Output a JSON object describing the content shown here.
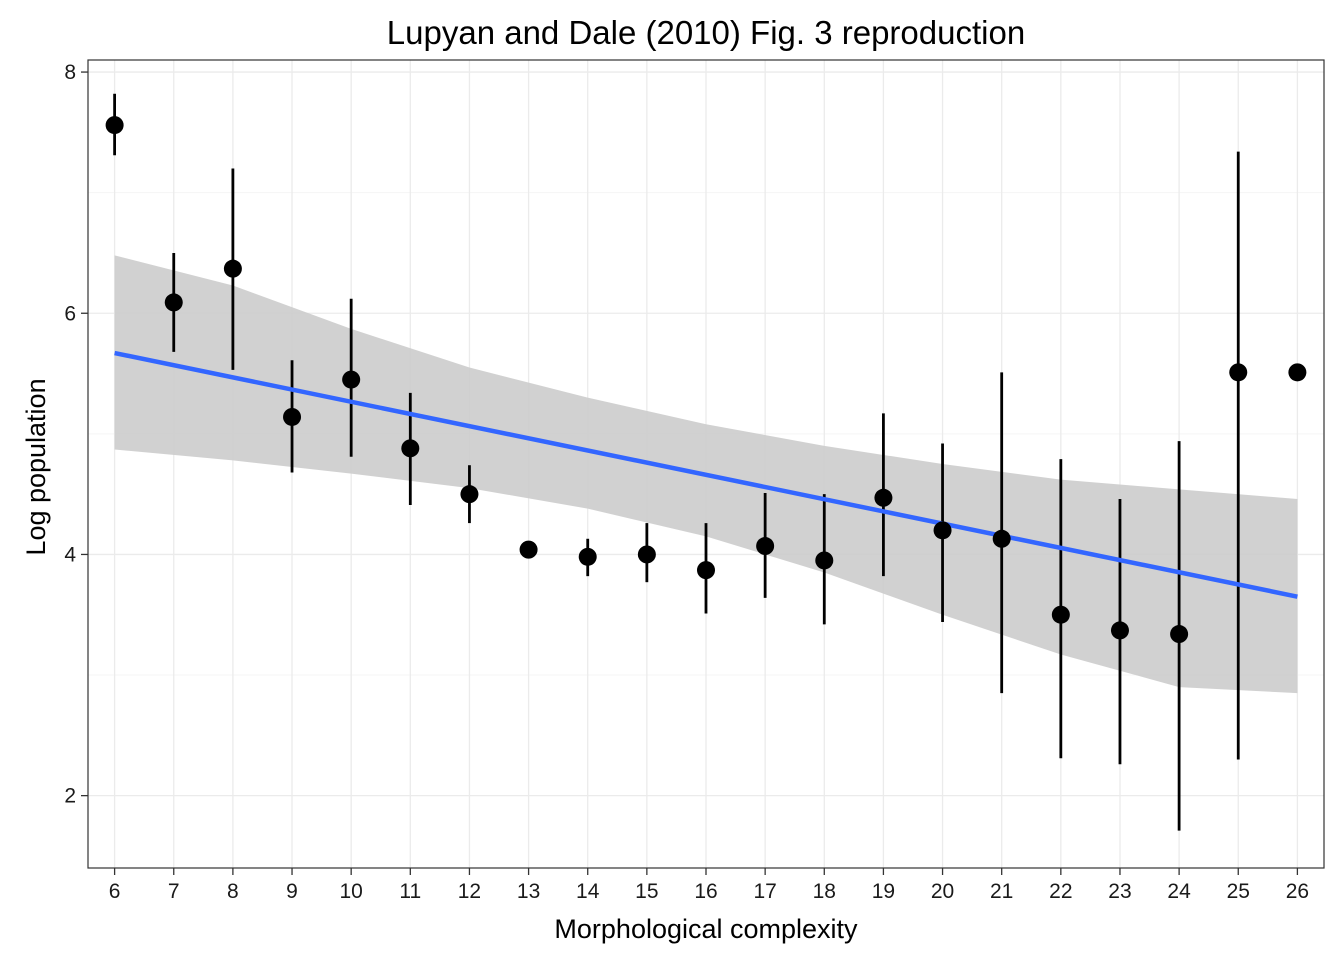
{
  "chart_data": {
    "type": "scatter",
    "title": "Lupyan and Dale (2010) Fig. 3 reproduction",
    "xlabel": "Morphological complexity",
    "ylabel": "Log population",
    "xlim": [
      5.55,
      26.45
    ],
    "ylim": [
      1.4,
      8.1
    ],
    "x_ticks": [
      6,
      7,
      8,
      9,
      10,
      11,
      12,
      13,
      14,
      15,
      16,
      17,
      18,
      19,
      20,
      21,
      22,
      23,
      24,
      25,
      26
    ],
    "x_tick_labels": [
      "6",
      "7",
      "8",
      "9",
      "10",
      "11",
      "12",
      "13",
      "14",
      "15",
      "16",
      "17",
      "18",
      "19",
      "20",
      "21",
      "22",
      "23",
      "24",
      "25",
      "26"
    ],
    "y_ticks": [
      2,
      4,
      6,
      8
    ],
    "y_tick_labels": [
      "2",
      "4",
      "6",
      "8"
    ],
    "y_minor_ticks": [
      3,
      5,
      7
    ],
    "grid": true,
    "legend": "none",
    "points": [
      {
        "x": 6,
        "y": 7.56,
        "ymin": 7.31,
        "ymax": 7.82
      },
      {
        "x": 7,
        "y": 6.09,
        "ymin": 5.68,
        "ymax": 6.5
      },
      {
        "x": 8,
        "y": 6.37,
        "ymin": 5.53,
        "ymax": 7.2
      },
      {
        "x": 9,
        "y": 5.14,
        "ymin": 4.68,
        "ymax": 5.61
      },
      {
        "x": 10,
        "y": 5.45,
        "ymin": 4.81,
        "ymax": 6.12
      },
      {
        "x": 11,
        "y": 4.88,
        "ymin": 4.41,
        "ymax": 5.34
      },
      {
        "x": 12,
        "y": 4.5,
        "ymin": 4.26,
        "ymax": 4.74
      },
      {
        "x": 13,
        "y": 4.04,
        "ymin": 3.98,
        "ymax": 4.1
      },
      {
        "x": 14,
        "y": 3.98,
        "ymin": 3.82,
        "ymax": 4.13
      },
      {
        "x": 15,
        "y": 4.0,
        "ymin": 3.77,
        "ymax": 4.26
      },
      {
        "x": 16,
        "y": 3.87,
        "ymin": 3.51,
        "ymax": 4.26
      },
      {
        "x": 17,
        "y": 4.07,
        "ymin": 3.64,
        "ymax": 4.51
      },
      {
        "x": 18,
        "y": 3.95,
        "ymin": 3.42,
        "ymax": 4.5
      },
      {
        "x": 19,
        "y": 4.47,
        "ymin": 3.82,
        "ymax": 5.17
      },
      {
        "x": 20,
        "y": 4.2,
        "ymin": 3.44,
        "ymax": 4.92
      },
      {
        "x": 21,
        "y": 4.13,
        "ymin": 2.85,
        "ymax": 5.51
      },
      {
        "x": 22,
        "y": 3.5,
        "ymin": 2.31,
        "ymax": 4.79
      },
      {
        "x": 23,
        "y": 3.37,
        "ymin": 2.26,
        "ymax": 4.46
      },
      {
        "x": 24,
        "y": 3.34,
        "ymin": 1.71,
        "ymax": 4.94
      },
      {
        "x": 25,
        "y": 5.51,
        "ymin": 2.3,
        "ymax": 7.34
      },
      {
        "x": 26,
        "y": 5.51
      }
    ],
    "fit": {
      "type": "linear",
      "x": [
        6,
        26
      ],
      "y": [
        5.67,
        3.65
      ],
      "color": "#3366ff"
    },
    "confidence_band": {
      "x": [
        6,
        8,
        10,
        12,
        14,
        16,
        18,
        20,
        22,
        24,
        26
      ],
      "ymin": [
        4.87,
        4.78,
        4.67,
        4.55,
        4.38,
        4.15,
        3.85,
        3.5,
        3.17,
        2.9,
        2.85
      ],
      "ymax": [
        6.48,
        6.23,
        5.87,
        5.55,
        5.3,
        5.08,
        4.9,
        4.75,
        4.62,
        4.54,
        4.46
      ],
      "color": "#cccccc"
    },
    "colors": {
      "point": "#000000",
      "errorbar": "#000000",
      "panel_border": "#333333",
      "grid_major": "#ebebeb",
      "grid_minor": "#f5f5f5"
    }
  }
}
